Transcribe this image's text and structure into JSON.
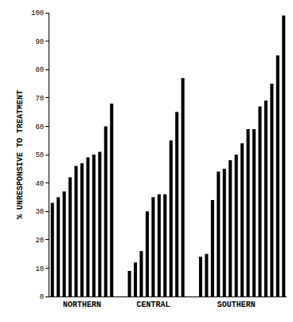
{
  "chart_data": {
    "type": "bar",
    "y_label": "% UNRESPONSIVE TO TREATMENT",
    "categories": [
      null,
      null,
      null,
      null,
      null,
      "NORTHERN",
      null,
      null,
      null,
      null,
      null,
      null,
      null,
      null,
      null,
      null,
      null,
      "CENTRAL",
      null,
      null,
      null,
      null,
      null,
      null,
      null,
      null,
      null,
      null,
      null,
      null,
      null,
      "SOUTHERN",
      null,
      null,
      null,
      null,
      null,
      null,
      null,
      null
    ],
    "values": [
      33,
      35,
      37,
      42,
      46,
      47,
      49,
      50,
      51,
      60,
      68,
      null,
      null,
      9,
      12,
      16,
      30,
      35,
      36,
      36,
      55,
      65,
      77,
      null,
      null,
      14,
      15,
      34,
      44,
      45,
      48,
      50,
      54,
      59,
      59,
      67,
      69,
      75,
      85,
      99
    ],
    "color": "#000000",
    "ylim": [
      0,
      100
    ],
    "yticks": [
      0,
      10,
      20,
      30,
      40,
      50,
      60,
      70,
      80,
      90,
      100
    ],
    "grid": false
  }
}
